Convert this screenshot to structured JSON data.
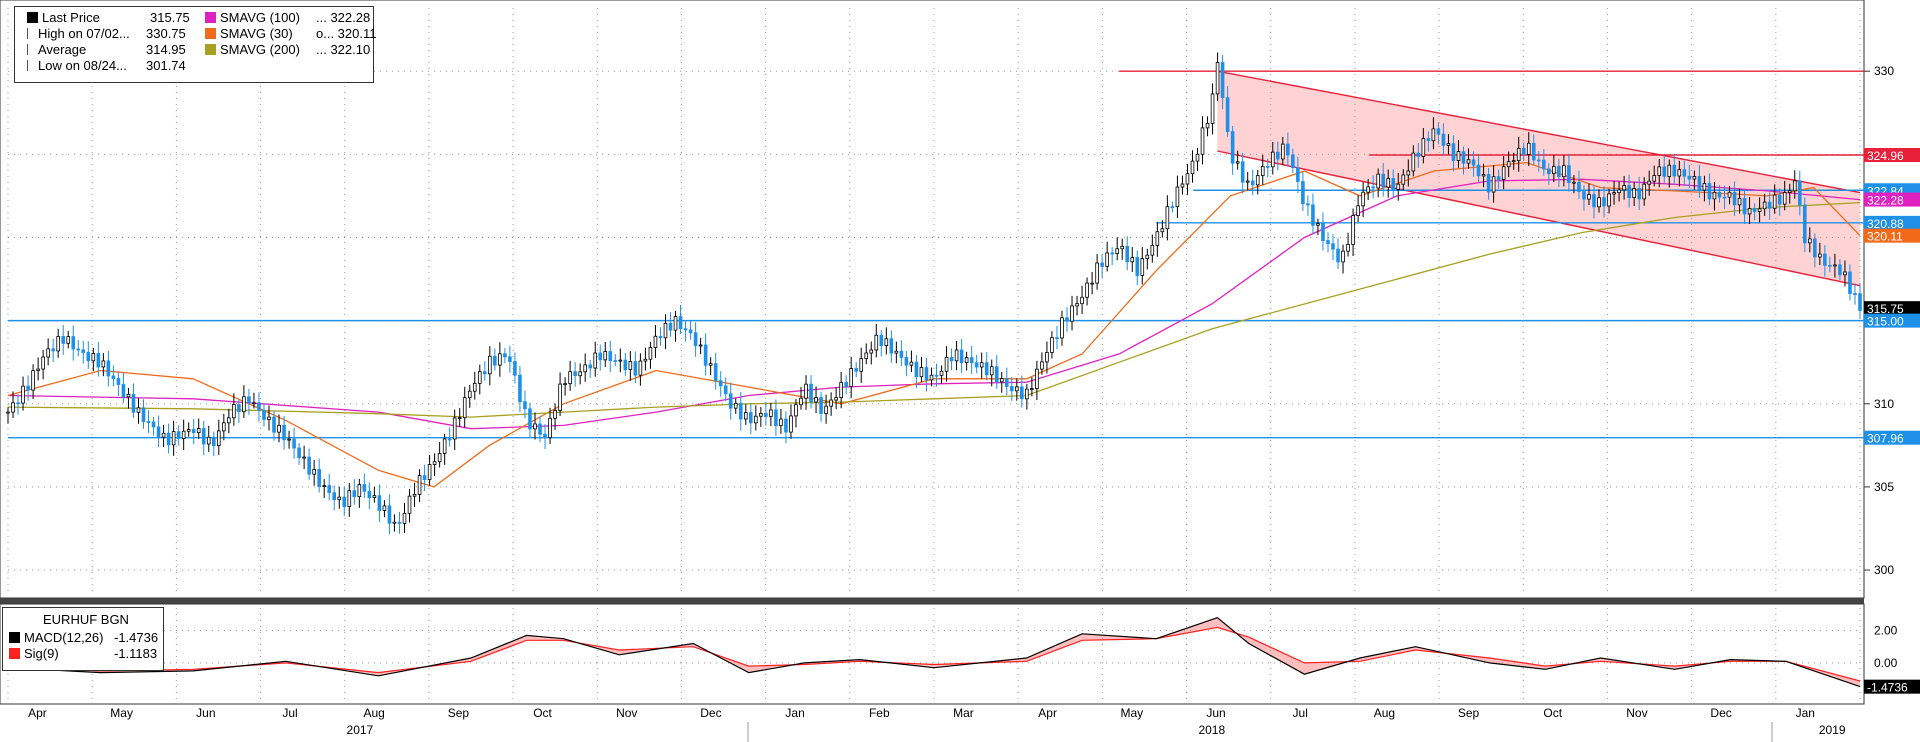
{
  "legend": {
    "rows": [
      {
        "label": "Last Price",
        "value": "315.75",
        "marker": "square",
        "color": "#000000"
      },
      {
        "label": "High on 07/02...",
        "value": "330.75",
        "marker": "high-tick",
        "color": "#000000"
      },
      {
        "label": "Average",
        "value": "314.95",
        "marker": "avg-line",
        "color": "#000000"
      },
      {
        "label": "Low on 08/24...",
        "value": "301.74",
        "marker": "low-tick",
        "color": "#000000"
      }
    ],
    "ma_rows": [
      {
        "label": "SMAVG (100)",
        "value": "... 322.28",
        "color": "#e020c0"
      },
      {
        "label": "SMAVG (30)",
        "value": "o... 320.11",
        "color": "#f06a1a"
      },
      {
        "label": "SMAVG (200)",
        "value": "... 322.10",
        "color": "#a8a020"
      }
    ]
  },
  "macd_legend": {
    "title": "EURHUF BGN",
    "rows": [
      {
        "label": "MACD(12,26)",
        "value": "-1.4736",
        "color": "#000000"
      },
      {
        "label": "Sig(9)",
        "value": "-1.1183",
        "color": "#ff2020"
      }
    ]
  },
  "price_labels": [
    {
      "text": "324.96",
      "value": 324.96,
      "color": "#e8203a"
    },
    {
      "text": "322.84",
      "value": 322.84,
      "color": "#1e90e8"
    },
    {
      "text": "322.28",
      "value": 322.28,
      "color": "#e020c0"
    },
    {
      "text": "320.88",
      "value": 320.88,
      "color": "#1e90e8"
    },
    {
      "text": "320.11",
      "value": 320.11,
      "color": "#f06a1a"
    },
    {
      "text": "315.75",
      "value": 315.75,
      "color": "#000000"
    },
    {
      "text": "315.00",
      "value": 315.0,
      "color": "#1e90e8"
    },
    {
      "text": "307.96",
      "value": 307.96,
      "color": "#1e90e8"
    }
  ],
  "macd_labels": [
    {
      "text": "-1.4736",
      "value": -1.4736,
      "color": "#000000"
    }
  ],
  "chart_data": {
    "type": "line",
    "title": "",
    "y_ticks": [
      300,
      305,
      310,
      315,
      320,
      325,
      330
    ],
    "y_range": [
      298.5,
      333.8
    ],
    "macd_ticks": [
      "2.00",
      "0.00"
    ],
    "macd_range": [
      -2.3,
      3.4
    ],
    "x_months": [
      "Apr",
      "May",
      "Jun",
      "Jul",
      "Aug",
      "Sep",
      "Oct",
      "Nov",
      "Dec",
      "Jan",
      "Feb",
      "Mar",
      "Apr",
      "May",
      "Jun",
      "Jul",
      "Aug",
      "Sep",
      "Oct",
      "Nov",
      "Dec",
      "Jan"
    ],
    "x_years": [
      "2017",
      "2018",
      "2019"
    ],
    "horizontal_levels": [
      {
        "value": 330.0,
        "color": "#e8203a",
        "from": 0.6
      },
      {
        "value": 324.96,
        "color": "#e8203a",
        "from": 0.735
      },
      {
        "value": 322.84,
        "color": "#1e90e8",
        "from": 0.64
      },
      {
        "value": 320.88,
        "color": "#1e90e8",
        "from": 0.62
      },
      {
        "value": 315.0,
        "color": "#1e90e8",
        "from": 0.0
      },
      {
        "value": 307.96,
        "color": "#1e90e8",
        "from": 0.0
      }
    ],
    "channel": {
      "upper": [
        [
          0.653,
          330.0
        ],
        [
          1.0,
          322.7
        ]
      ],
      "lower": [
        [
          0.653,
          325.2
        ],
        [
          1.0,
          317.1
        ]
      ]
    },
    "price_path": [
      [
        0.0,
        309.5
      ],
      [
        0.01,
        311.0
      ],
      [
        0.02,
        313.0
      ],
      [
        0.03,
        314.0
      ],
      [
        0.04,
        313.0
      ],
      [
        0.05,
        312.5
      ],
      [
        0.06,
        311.0
      ],
      [
        0.07,
        309.5
      ],
      [
        0.085,
        307.8
      ],
      [
        0.1,
        308.5
      ],
      [
        0.11,
        307.5
      ],
      [
        0.12,
        309.5
      ],
      [
        0.13,
        310.3
      ],
      [
        0.14,
        309.0
      ],
      [
        0.15,
        308.0
      ],
      [
        0.16,
        306.5
      ],
      [
        0.17,
        305.0
      ],
      [
        0.18,
        304.0
      ],
      [
        0.19,
        305.0
      ],
      [
        0.2,
        304.0
      ],
      [
        0.21,
        302.5
      ],
      [
        0.22,
        305.0
      ],
      [
        0.23,
        306.5
      ],
      [
        0.24,
        308.5
      ],
      [
        0.25,
        311.0
      ],
      [
        0.26,
        312.5
      ],
      [
        0.27,
        313.0
      ],
      [
        0.28,
        309.0
      ],
      [
        0.29,
        308.0
      ],
      [
        0.3,
        311.5
      ],
      [
        0.31,
        312.0
      ],
      [
        0.32,
        313.0
      ],
      [
        0.33,
        312.5
      ],
      [
        0.34,
        312.0
      ],
      [
        0.35,
        314.0
      ],
      [
        0.36,
        315.0
      ],
      [
        0.37,
        314.0
      ],
      [
        0.38,
        312.0
      ],
      [
        0.39,
        310.0
      ],
      [
        0.4,
        309.0
      ],
      [
        0.41,
        309.5
      ],
      [
        0.42,
        308.5
      ],
      [
        0.43,
        311.0
      ],
      [
        0.44,
        309.5
      ],
      [
        0.45,
        311.0
      ],
      [
        0.46,
        312.5
      ],
      [
        0.47,
        314.0
      ],
      [
        0.48,
        313.0
      ],
      [
        0.49,
        312.0
      ],
      [
        0.5,
        311.5
      ],
      [
        0.51,
        313.0
      ],
      [
        0.52,
        312.5
      ],
      [
        0.53,
        312.0
      ],
      [
        0.54,
        311.0
      ],
      [
        0.55,
        310.5
      ],
      [
        0.56,
        313.0
      ],
      [
        0.57,
        315.0
      ],
      [
        0.58,
        316.5
      ],
      [
        0.59,
        318.5
      ],
      [
        0.6,
        319.5
      ],
      [
        0.61,
        318.0
      ],
      [
        0.62,
        320.0
      ],
      [
        0.63,
        322.5
      ],
      [
        0.64,
        324.5
      ],
      [
        0.65,
        328.0
      ],
      [
        0.653,
        330.75
      ],
      [
        0.66,
        325.0
      ],
      [
        0.67,
        323.0
      ],
      [
        0.68,
        324.5
      ],
      [
        0.69,
        325.5
      ],
      [
        0.7,
        322.0
      ],
      [
        0.71,
        320.0
      ],
      [
        0.72,
        318.5
      ],
      [
        0.73,
        322.5
      ],
      [
        0.74,
        323.5
      ],
      [
        0.75,
        323.0
      ],
      [
        0.76,
        325.0
      ],
      [
        0.77,
        326.5
      ],
      [
        0.78,
        325.0
      ],
      [
        0.79,
        324.5
      ],
      [
        0.8,
        323.0
      ],
      [
        0.81,
        324.5
      ],
      [
        0.82,
        325.5
      ],
      [
        0.83,
        324.0
      ],
      [
        0.84,
        324.0
      ],
      [
        0.85,
        322.5
      ],
      [
        0.86,
        322.0
      ],
      [
        0.87,
        323.0
      ],
      [
        0.88,
        322.5
      ],
      [
        0.89,
        324.0
      ],
      [
        0.9,
        324.0
      ],
      [
        0.91,
        323.5
      ],
      [
        0.92,
        322.5
      ],
      [
        0.93,
        322.5
      ],
      [
        0.94,
        321.5
      ],
      [
        0.95,
        322.0
      ],
      [
        0.96,
        322.5
      ],
      [
        0.965,
        323.5
      ],
      [
        0.97,
        320.0
      ],
      [
        0.98,
        318.5
      ],
      [
        0.99,
        318.0
      ],
      [
        1.0,
        315.75
      ]
    ],
    "series": [
      {
        "name": "SMAVG (100)",
        "color": "#e020c0",
        "points": [
          [
            0,
            310.5
          ],
          [
            0.1,
            310.3
          ],
          [
            0.2,
            309.5
          ],
          [
            0.25,
            308.5
          ],
          [
            0.3,
            308.7
          ],
          [
            0.35,
            309.5
          ],
          [
            0.4,
            310.5
          ],
          [
            0.45,
            311.0
          ],
          [
            0.5,
            311.2
          ],
          [
            0.55,
            311.3
          ],
          [
            0.6,
            313.0
          ],
          [
            0.65,
            316.0
          ],
          [
            0.7,
            320.0
          ],
          [
            0.75,
            322.5
          ],
          [
            0.8,
            323.4
          ],
          [
            0.85,
            323.5
          ],
          [
            0.9,
            323.2
          ],
          [
            0.95,
            322.8
          ],
          [
            1.0,
            322.28
          ]
        ]
      },
      {
        "name": "SMAVG (30)",
        "color": "#f06a1a",
        "points": [
          [
            0,
            310.5
          ],
          [
            0.05,
            312.0
          ],
          [
            0.1,
            311.5
          ],
          [
            0.15,
            309.0
          ],
          [
            0.2,
            306.0
          ],
          [
            0.23,
            305.0
          ],
          [
            0.26,
            307.5
          ],
          [
            0.3,
            310.0
          ],
          [
            0.35,
            312.0
          ],
          [
            0.4,
            311.0
          ],
          [
            0.45,
            310.0
          ],
          [
            0.5,
            311.5
          ],
          [
            0.55,
            311.5
          ],
          [
            0.58,
            313.0
          ],
          [
            0.62,
            318.0
          ],
          [
            0.66,
            322.5
          ],
          [
            0.7,
            324.0
          ],
          [
            0.73,
            322.5
          ],
          [
            0.77,
            324.0
          ],
          [
            0.82,
            324.5
          ],
          [
            0.86,
            323.0
          ],
          [
            0.9,
            322.8
          ],
          [
            0.95,
            322.5
          ],
          [
            0.975,
            323.0
          ],
          [
            1.0,
            320.11
          ]
        ]
      },
      {
        "name": "SMAVG (200)",
        "color": "#a8a020",
        "points": [
          [
            0,
            309.8
          ],
          [
            0.1,
            309.7
          ],
          [
            0.2,
            309.4
          ],
          [
            0.25,
            309.2
          ],
          [
            0.3,
            309.5
          ],
          [
            0.35,
            309.8
          ],
          [
            0.4,
            310.0
          ],
          [
            0.45,
            310.1
          ],
          [
            0.5,
            310.3
          ],
          [
            0.55,
            310.5
          ],
          [
            0.6,
            312.5
          ],
          [
            0.65,
            314.5
          ],
          [
            0.7,
            316.0
          ],
          [
            0.75,
            317.5
          ],
          [
            0.8,
            319.0
          ],
          [
            0.85,
            320.3
          ],
          [
            0.9,
            321.2
          ],
          [
            0.95,
            321.8
          ],
          [
            1.0,
            322.1
          ]
        ]
      }
    ],
    "macd_path": [
      [
        0,
        -0.3
      ],
      [
        0.05,
        -0.6
      ],
      [
        0.1,
        -0.5
      ],
      [
        0.15,
        0.1
      ],
      [
        0.2,
        -0.8
      ],
      [
        0.25,
        0.3
      ],
      [
        0.28,
        1.7
      ],
      [
        0.3,
        1.5
      ],
      [
        0.33,
        0.5
      ],
      [
        0.37,
        1.2
      ],
      [
        0.4,
        -0.6
      ],
      [
        0.43,
        0.0
      ],
      [
        0.46,
        0.2
      ],
      [
        0.5,
        -0.3
      ],
      [
        0.55,
        0.3
      ],
      [
        0.58,
        1.8
      ],
      [
        0.62,
        1.5
      ],
      [
        0.653,
        2.8
      ],
      [
        0.67,
        1.2
      ],
      [
        0.7,
        -0.7
      ],
      [
        0.73,
        0.3
      ],
      [
        0.76,
        1.0
      ],
      [
        0.8,
        0.0
      ],
      [
        0.83,
        -0.4
      ],
      [
        0.86,
        0.3
      ],
      [
        0.9,
        -0.4
      ],
      [
        0.93,
        0.2
      ],
      [
        0.96,
        0.1
      ],
      [
        1.0,
        -1.47
      ]
    ],
    "signal_path": [
      [
        0,
        -0.2
      ],
      [
        0.05,
        -0.5
      ],
      [
        0.1,
        -0.4
      ],
      [
        0.15,
        0.0
      ],
      [
        0.2,
        -0.6
      ],
      [
        0.25,
        0.1
      ],
      [
        0.28,
        1.4
      ],
      [
        0.3,
        1.4
      ],
      [
        0.33,
        0.8
      ],
      [
        0.37,
        1.0
      ],
      [
        0.4,
        -0.2
      ],
      [
        0.43,
        -0.1
      ],
      [
        0.46,
        0.1
      ],
      [
        0.5,
        -0.1
      ],
      [
        0.55,
        0.1
      ],
      [
        0.58,
        1.4
      ],
      [
        0.62,
        1.5
      ],
      [
        0.653,
        2.2
      ],
      [
        0.67,
        1.6
      ],
      [
        0.7,
        0.0
      ],
      [
        0.73,
        0.1
      ],
      [
        0.76,
        0.8
      ],
      [
        0.8,
        0.3
      ],
      [
        0.83,
        -0.2
      ],
      [
        0.86,
        0.1
      ],
      [
        0.9,
        -0.2
      ],
      [
        0.93,
        0.1
      ],
      [
        0.96,
        0.1
      ],
      [
        1.0,
        -1.12
      ]
    ]
  }
}
